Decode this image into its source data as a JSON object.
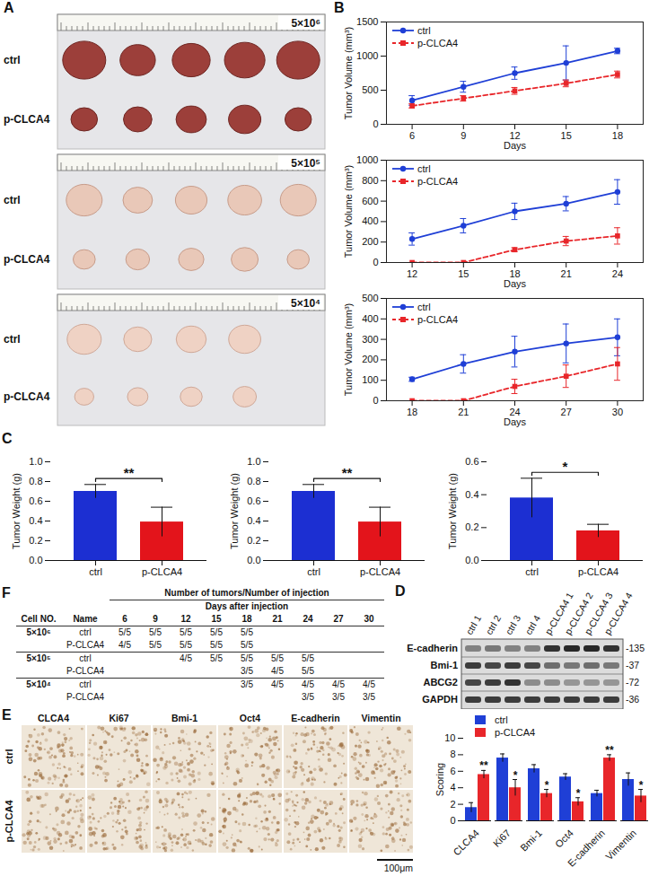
{
  "panel_letters": [
    "A",
    "B",
    "C",
    "D",
    "E",
    "F"
  ],
  "panel_A": {
    "row_labels": [
      "ctrl",
      "p-CLCA4"
    ],
    "strips": [
      {
        "label": "5×10⁶",
        "tumors": [
          5,
          5
        ]
      },
      {
        "label": "5×10⁵",
        "tumors": [
          5,
          5
        ]
      },
      {
        "label": "5×10⁴",
        "tumors": [
          4,
          4
        ]
      }
    ]
  },
  "chart_data": [
    {
      "type": "line",
      "x_label": "Days",
      "y_label": "Tumor Volume (mm³)",
      "x": [
        6,
        9,
        12,
        15,
        18
      ],
      "xlim": [
        4.5,
        19.5
      ],
      "xticks": [
        6,
        9,
        12,
        15,
        18
      ],
      "ylim": [
        0,
        1500
      ],
      "yticks": [
        0,
        500,
        1000,
        1500
      ],
      "legend": "top-left",
      "series": [
        {
          "name": "ctrl",
          "color": "#1f3fd6",
          "marker": "circle",
          "line_style": "solid",
          "values": [
            350,
            550,
            750,
            900,
            1075
          ],
          "errors": [
            70,
            80,
            90,
            250,
            40
          ]
        },
        {
          "name": "p-CLCA4",
          "color": "#e8262a",
          "marker": "square",
          "line_style": "dashed",
          "values": [
            270,
            380,
            490,
            600,
            730
          ],
          "errors": [
            30,
            40,
            50,
            50,
            50
          ]
        }
      ]
    },
    {
      "type": "line",
      "x_label": "Days",
      "y_label": "Tumor Volume (mm³)",
      "x": [
        12,
        15,
        18,
        21,
        24
      ],
      "xlim": [
        10.5,
        25.5
      ],
      "xticks": [
        12,
        15,
        18,
        21,
        24
      ],
      "ylim": [
        0,
        1000
      ],
      "yticks": [
        0,
        200,
        400,
        600,
        800,
        1000
      ],
      "legend": "top-left",
      "series": [
        {
          "name": "ctrl",
          "color": "#1f3fd6",
          "marker": "circle",
          "line_style": "solid",
          "values": [
            230,
            360,
            500,
            575,
            690
          ],
          "errors": [
            60,
            70,
            80,
            70,
            120
          ]
        },
        {
          "name": "p-CLCA4",
          "color": "#e8262a",
          "marker": "square",
          "line_style": "dashed",
          "values": [
            0,
            0,
            125,
            210,
            260
          ],
          "errors": [
            0,
            0,
            20,
            45,
            80
          ]
        }
      ]
    },
    {
      "type": "line",
      "x_label": "Days",
      "y_label": "Tumor Volume (mm³)",
      "x": [
        18,
        21,
        24,
        27,
        30
      ],
      "xlim": [
        16.5,
        31.5
      ],
      "xticks": [
        18,
        21,
        24,
        27,
        30
      ],
      "ylim": [
        0,
        500
      ],
      "yticks": [
        0,
        100,
        200,
        300,
        400,
        500
      ],
      "legend": "top-left",
      "series": [
        {
          "name": "ctrl",
          "color": "#1f3fd6",
          "marker": "circle",
          "line_style": "solid",
          "values": [
            105,
            180,
            240,
            280,
            310
          ],
          "errors": [
            10,
            45,
            75,
            95,
            90
          ]
        },
        {
          "name": "p-CLCA4",
          "color": "#e8262a",
          "marker": "square",
          "line_style": "dashed",
          "values": [
            0,
            0,
            70,
            120,
            180
          ],
          "errors": [
            0,
            0,
            35,
            55,
            80
          ]
        }
      ]
    },
    {
      "type": "bar",
      "y_label": "Tumor Weight (g)",
      "categories": [
        "ctrl",
        "p-CLCA4"
      ],
      "values": [
        0.7,
        0.39
      ],
      "errors": [
        0.07,
        0.15
      ],
      "colors": [
        "#1c2fd2",
        "#e3141b"
      ],
      "ylim": [
        0,
        1.0
      ],
      "yticks": [
        {
          "value": 0,
          "label": "0.0"
        },
        {
          "value": 0.2,
          "label": "0.2"
        },
        {
          "value": 0.4,
          "label": "0.4"
        },
        {
          "value": 0.6,
          "label": "0.6"
        },
        {
          "value": 0.8,
          "label": "0.8"
        },
        {
          "value": 1.0,
          "label": "1.0"
        }
      ],
      "annotation": "**"
    },
    {
      "type": "bar",
      "y_label": "Tumor Weight (g)",
      "categories": [
        "ctrl",
        "p-CLCA4"
      ],
      "values": [
        0.7,
        0.39
      ],
      "errors": [
        0.07,
        0.15
      ],
      "colors": [
        "#1c2fd2",
        "#e3141b"
      ],
      "ylim": [
        0,
        1.0
      ],
      "yticks": [
        {
          "value": 0,
          "label": "0.0"
        },
        {
          "value": 0.2,
          "label": "0.2"
        },
        {
          "value": 0.4,
          "label": "0.4"
        },
        {
          "value": 0.6,
          "label": "0.6"
        },
        {
          "value": 0.8,
          "label": "0.8"
        },
        {
          "value": 1.0,
          "label": "1.0"
        }
      ],
      "annotation": "**"
    },
    {
      "type": "bar",
      "y_label": "Tumor Weight (g)",
      "categories": [
        "ctrl",
        "p-CLCA4"
      ],
      "values": [
        0.38,
        0.18
      ],
      "errors": [
        0.12,
        0.04
      ],
      "colors": [
        "#1c2fd2",
        "#e3141b"
      ],
      "ylim": [
        0,
        0.6
      ],
      "yticks": [
        {
          "value": 0,
          "label": "0.0"
        },
        {
          "value": 0.2,
          "label": "0.2"
        },
        {
          "value": 0.4,
          "label": "0.4"
        },
        {
          "value": 0.6,
          "label": "0.6"
        }
      ],
      "annotation": "*"
    },
    {
      "type": "bar",
      "y_label": "Scoring",
      "categories": [
        "CLCA4",
        "Ki67",
        "Bmi-1",
        "Oct4",
        "E-cadherin",
        "Vimentin"
      ],
      "ylim": [
        0,
        10
      ],
      "yticks": [
        0,
        2,
        4,
        6,
        8,
        10
      ],
      "legend": "top-left",
      "series": [
        {
          "name": "ctrl",
          "color": "#1f3fd6",
          "values": [
            1.6,
            7.6,
            6.3,
            5.3,
            3.3,
            5.0
          ],
          "errors": [
            0.6,
            0.5,
            0.5,
            0.4,
            0.4,
            0.8
          ]
        },
        {
          "name": "p-CLCA4",
          "color": "#e8262a",
          "values": [
            5.6,
            4.0,
            3.3,
            2.3,
            7.6,
            3.0
          ],
          "errors": [
            0.5,
            1.0,
            0.5,
            0.5,
            0.4,
            0.8
          ],
          "annotations": [
            "**",
            "*",
            "*",
            "*",
            "**",
            "*"
          ]
        }
      ]
    }
  ],
  "panel_D": {
    "lanes": [
      "ctrl 1",
      "ctrl 2",
      "ctrl 3",
      "ctrl 4",
      "p-CLCA4 1",
      "p-CLCA4 2",
      "p-CLCA4 3",
      "p-CLCA4 4"
    ],
    "rows": [
      {
        "label": "E-cadherin",
        "mw": "-135",
        "intensity": [
          0.45,
          0.5,
          0.45,
          0.45,
          0.85,
          0.9,
          0.9,
          0.85
        ]
      },
      {
        "label": "Bmi-1",
        "mw": "-37",
        "intensity": [
          0.8,
          0.75,
          0.8,
          0.75,
          0.55,
          0.5,
          0.55,
          0.5
        ]
      },
      {
        "label": "ABCG2",
        "mw": "-72",
        "intensity": [
          0.75,
          0.8,
          0.85,
          0.4,
          0.4,
          0.35,
          0.35,
          0.35
        ]
      },
      {
        "label": "GAPDH",
        "mw": "-36",
        "intensity": [
          0.8,
          0.8,
          0.8,
          0.8,
          0.8,
          0.8,
          0.8,
          0.8
        ]
      }
    ]
  },
  "panel_E_images": {
    "stains": [
      "CLCA4",
      "Ki67",
      "Bmi-1",
      "Oct4",
      "E-cadherin",
      "Vimentin"
    ],
    "groups": [
      "ctrl",
      "p-CLCA4"
    ],
    "scale_bar": "100μm"
  },
  "panel_F": {
    "title": "Number of tumors/Number of injection",
    "subtitle": "Days after injection",
    "header": [
      "Cell NO.",
      "Name",
      "6",
      "9",
      "12",
      "15",
      "18",
      "21",
      "24",
      "27",
      "30"
    ],
    "rows": [
      [
        "5×10⁶",
        "ctrl",
        "5/5",
        "5/5",
        "5/5",
        "5/5",
        "5/5",
        null,
        null,
        null,
        null
      ],
      [
        null,
        "P-CLCA4",
        "4/5",
        "5/5",
        "5/5",
        "5/5",
        "5/5",
        null,
        null,
        null,
        null
      ],
      [
        "5×10⁵",
        "ctrl",
        null,
        null,
        "4/5",
        "5/5",
        "5/5",
        "5/5",
        "5/5",
        null,
        null
      ],
      [
        null,
        "P-CLCA4",
        null,
        null,
        null,
        null,
        "3/5",
        "4/5",
        "5/5",
        null,
        null
      ],
      [
        "5×10⁴",
        "ctrl",
        null,
        null,
        null,
        null,
        "3/5",
        "4/5",
        "4/5",
        "4/5",
        "4/5"
      ],
      [
        null,
        "P-CLCA4",
        null,
        null,
        null,
        null,
        null,
        null,
        "3/5",
        "3/5",
        "3/5"
      ]
    ]
  }
}
